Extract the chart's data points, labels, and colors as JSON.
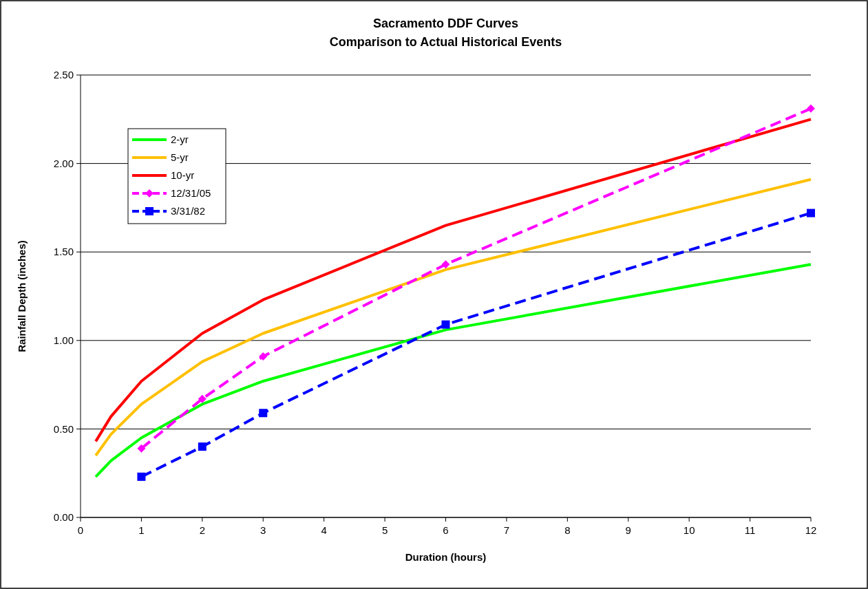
{
  "chart_data": {
    "type": "line",
    "title": "Sacramento DDF Curves",
    "subtitle": "Comparison to Actual Historical Events",
    "xlabel": "Duration (hours)",
    "ylabel": "Rainfall Depth (inches)",
    "xlim": [
      0,
      12
    ],
    "xticks": [
      0,
      1,
      2,
      3,
      4,
      5,
      6,
      7,
      8,
      9,
      10,
      11,
      12
    ],
    "ylim": [
      0,
      2.5
    ],
    "yticks": [
      {
        "value": 0,
        "label": "0.00"
      },
      {
        "value": 0.5,
        "label": "0.50"
      },
      {
        "value": 1,
        "label": "1.00"
      },
      {
        "value": 1.5,
        "label": "1.50"
      },
      {
        "value": 2,
        "label": "2.00"
      },
      {
        "value": 2.5,
        "label": "2.50"
      }
    ],
    "grid": "y",
    "legend": "top left",
    "series": [
      {
        "name": "2-yr",
        "color": "#00ff00",
        "marker": "none",
        "line_style": "solid",
        "x": [
          0.25,
          0.5,
          1,
          2,
          3,
          6,
          12
        ],
        "values": [
          0.23,
          0.32,
          0.45,
          0.64,
          0.77,
          1.06,
          1.43
        ]
      },
      {
        "name": "5-yr",
        "color": "#ffc000",
        "marker": "none",
        "line_style": "solid",
        "x": [
          0.25,
          0.5,
          1,
          2,
          3,
          6,
          12
        ],
        "values": [
          0.35,
          0.47,
          0.64,
          0.88,
          1.04,
          1.4,
          1.91
        ]
      },
      {
        "name": "10-yr",
        "color": "#ff0000",
        "marker": "none",
        "line_style": "solid",
        "x": [
          0.25,
          0.5,
          1,
          2,
          3,
          6,
          12
        ],
        "values": [
          0.43,
          0.57,
          0.77,
          1.04,
          1.23,
          1.65,
          2.25
        ]
      },
      {
        "name": "12/31/05",
        "color": "#ff00ff",
        "marker": "diamond",
        "line_style": "dashed",
        "x": [
          1,
          2,
          3,
          6,
          12
        ],
        "values": [
          0.39,
          0.67,
          0.91,
          1.43,
          2.31
        ]
      },
      {
        "name": "3/31/82",
        "color": "#0000ff",
        "marker": "square",
        "line_style": "dashed",
        "x": [
          1,
          2,
          3,
          6,
          12
        ],
        "values": [
          0.23,
          0.4,
          0.59,
          1.09,
          1.72
        ]
      }
    ]
  }
}
